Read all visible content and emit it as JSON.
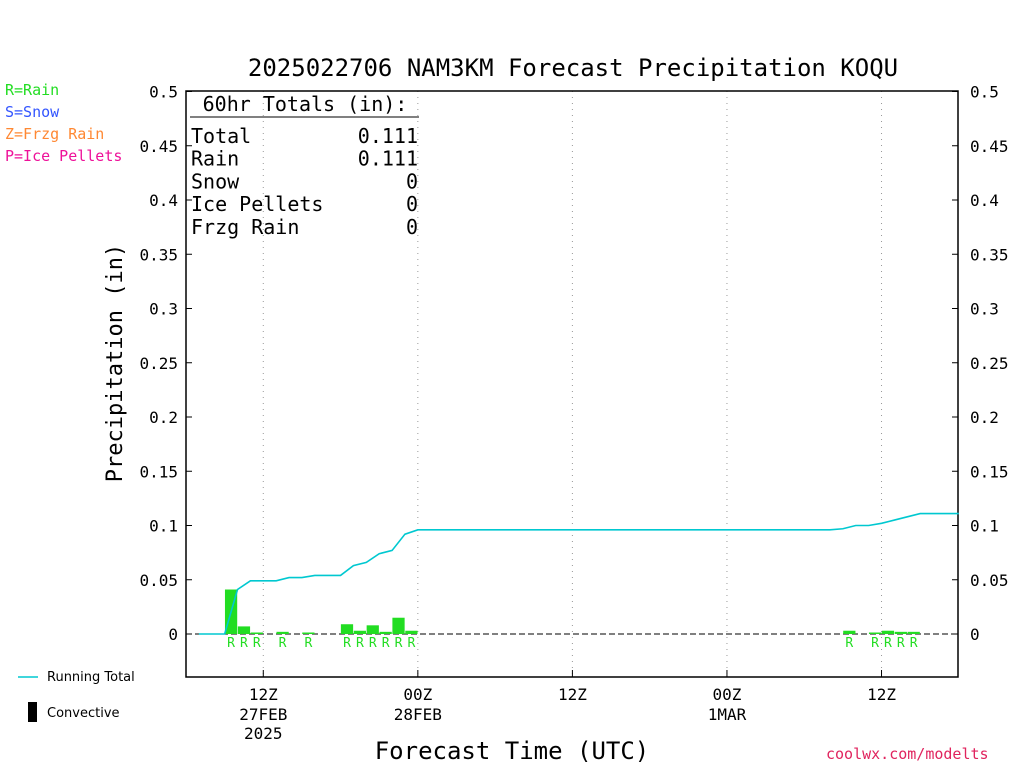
{
  "colors": {
    "rain": "#22dd22",
    "snow": "#3355ff",
    "frzg_rain": "#ff8833",
    "ice_pellets": "#ee1199",
    "running_total": "#00c8d0",
    "convective": "#000000",
    "watermark": "#e0245e"
  },
  "type_legend": [
    {
      "label": "R=Rain",
      "color_key": "rain"
    },
    {
      "label": "S=Snow",
      "color_key": "snow"
    },
    {
      "label": "Z=Frzg Rain",
      "color_key": "frzg_rain"
    },
    {
      "label": "P=Ice Pellets",
      "color_key": "ice_pellets"
    }
  ],
  "bottom_legend": {
    "running_total": "Running Total",
    "convective": "Convective"
  },
  "watermark": "coolwx.com/modelts",
  "chart_data": {
    "type": "bar",
    "title": "2025022706 NAM3KM Forecast Precipitation KOQU",
    "xlabel": "Forecast Time (UTC)",
    "ylabel": "Precipitation (in)",
    "ylim": [
      -0.04,
      0.5
    ],
    "yticks": [
      "0.5",
      "0.45",
      "0.4",
      "0.35",
      "0.3",
      "0.25",
      "0.2",
      "0.15",
      "0.1",
      "0.05",
      "0"
    ],
    "xlim_hours": [
      0,
      60
    ],
    "grid": "vertical dotted at 12Z/00Z",
    "x_ticks": [
      {
        "hour": 6,
        "label": "12Z",
        "sub1": "27FEB",
        "sub2": "2025"
      },
      {
        "hour": 18,
        "label": "00Z",
        "sub1": "28FEB",
        "sub2": ""
      },
      {
        "hour": 30,
        "label": "12Z",
        "sub1": "",
        "sub2": ""
      },
      {
        "hour": 42,
        "label": "00Z",
        "sub1": "1MAR",
        "sub2": ""
      },
      {
        "hour": 54,
        "label": "12Z",
        "sub1": "",
        "sub2": ""
      }
    ],
    "totals_box": {
      "heading": "60hr Totals (in):",
      "rows": [
        {
          "label": "Total",
          "value": "0.111"
        },
        {
          "label": "Rain",
          "value": "0.111"
        },
        {
          "label": "Snow",
          "value": "0"
        },
        {
          "label": "Ice Pellets",
          "value": "0"
        },
        {
          "label": "Frzg Rain",
          "value": "0"
        }
      ]
    },
    "bars": [
      {
        "hour": 4,
        "value": 0.041,
        "type": "R"
      },
      {
        "hour": 5,
        "value": 0.007,
        "type": "R"
      },
      {
        "hour": 6,
        "value": 0.0005,
        "type": "R"
      },
      {
        "hour": 8,
        "value": 0.002,
        "type": "R"
      },
      {
        "hour": 10,
        "value": 0.001,
        "type": "R"
      },
      {
        "hour": 13,
        "value": 0.009,
        "type": "R"
      },
      {
        "hour": 14,
        "value": 0.003,
        "type": "R"
      },
      {
        "hour": 15,
        "value": 0.008,
        "type": "R"
      },
      {
        "hour": 16,
        "value": 0.002,
        "type": "R"
      },
      {
        "hour": 17,
        "value": 0.015,
        "type": "R"
      },
      {
        "hour": 18,
        "value": 0.003,
        "type": "R"
      },
      {
        "hour": 52,
        "value": 0.003,
        "type": "R"
      },
      {
        "hour": 54,
        "value": 0.001,
        "type": "R"
      },
      {
        "hour": 55,
        "value": 0.003,
        "type": "R"
      },
      {
        "hour": 56,
        "value": 0.002,
        "type": "R"
      },
      {
        "hour": 57,
        "value": 0.002,
        "type": "R"
      }
    ],
    "running_total": {
      "name": "Running Total",
      "x": [
        1,
        2,
        3,
        4,
        5,
        6,
        7,
        8,
        9,
        10,
        11,
        12,
        13,
        14,
        15,
        16,
        17,
        18,
        19,
        20,
        30,
        40,
        50,
        51,
        52,
        53,
        54,
        55,
        56,
        57,
        58,
        59,
        60
      ],
      "y": [
        0,
        0,
        0,
        0.041,
        0.049,
        0.049,
        0.049,
        0.052,
        0.052,
        0.054,
        0.054,
        0.054,
        0.063,
        0.066,
        0.074,
        0.077,
        0.092,
        0.096,
        0.096,
        0.096,
        0.096,
        0.096,
        0.096,
        0.097,
        0.1,
        0.1,
        0.102,
        0.105,
        0.108,
        0.111,
        0.111,
        0.111,
        0.111
      ]
    }
  }
}
